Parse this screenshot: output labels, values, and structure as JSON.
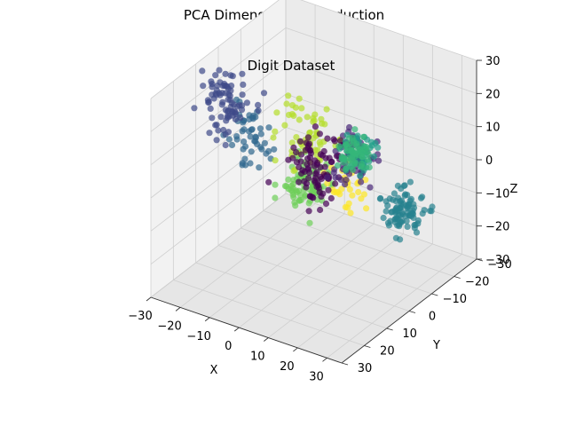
{
  "figure": {
    "suptitle": "PCA Dimensionality Reduction"
  },
  "chart_data": {
    "type": "scatter",
    "projection": "3d",
    "title": "Digit Dataset",
    "xlabel": "X",
    "ylabel": "Y",
    "zlabel": "Z",
    "xlim": [
      -30,
      35
    ],
    "ylim": [
      -30,
      30
    ],
    "zlim": [
      -30,
      30
    ],
    "x_ticks": [
      "−30",
      "−20",
      "−10",
      "0",
      "10",
      "20",
      "30"
    ],
    "y_ticks": [
      "−30",
      "−20",
      "−10",
      "0",
      "10",
      "20",
      "30"
    ],
    "z_ticks": [
      "−30",
      "−20",
      "−10",
      "0",
      "10",
      "20",
      "30"
    ],
    "grid": true,
    "colormap": "viridis",
    "point_opacity": 0.7,
    "clusters": [
      {
        "color": "#440154",
        "center": [
          6,
          4,
          6
        ],
        "spread": [
          6,
          5,
          6
        ],
        "count": 90
      },
      {
        "color": "#482878",
        "center": [
          20,
          5,
          14
        ],
        "spread": [
          4,
          4,
          5
        ],
        "count": 60
      },
      {
        "color": "#3e4a89",
        "center": [
          -18,
          12,
          24
        ],
        "spread": [
          6,
          4,
          6
        ],
        "count": 80
      },
      {
        "color": "#31688e",
        "center": [
          -20,
          -2,
          4
        ],
        "spread": [
          5,
          4,
          6
        ],
        "count": 50
      },
      {
        "color": "#26828e",
        "center": [
          24,
          -12,
          -10
        ],
        "spread": [
          5,
          4,
          4
        ],
        "count": 90
      },
      {
        "color": "#1f9e89",
        "center": [
          28,
          12,
          22
        ],
        "spread": [
          3,
          3,
          4
        ],
        "count": 40
      },
      {
        "color": "#35b779",
        "center": [
          30,
          18,
          26
        ],
        "spread": [
          3,
          3,
          3
        ],
        "count": 60
      },
      {
        "color": "#6ece58",
        "center": [
          -14,
          -18,
          -16
        ],
        "spread": [
          5,
          5,
          5
        ],
        "count": 80
      },
      {
        "color": "#b5de2b",
        "center": [
          -4,
          -4,
          10
        ],
        "spread": [
          6,
          4,
          6
        ],
        "count": 60
      },
      {
        "color": "#fde725",
        "center": [
          6,
          -10,
          -8
        ],
        "spread": [
          5,
          4,
          5
        ],
        "count": 30
      }
    ]
  }
}
